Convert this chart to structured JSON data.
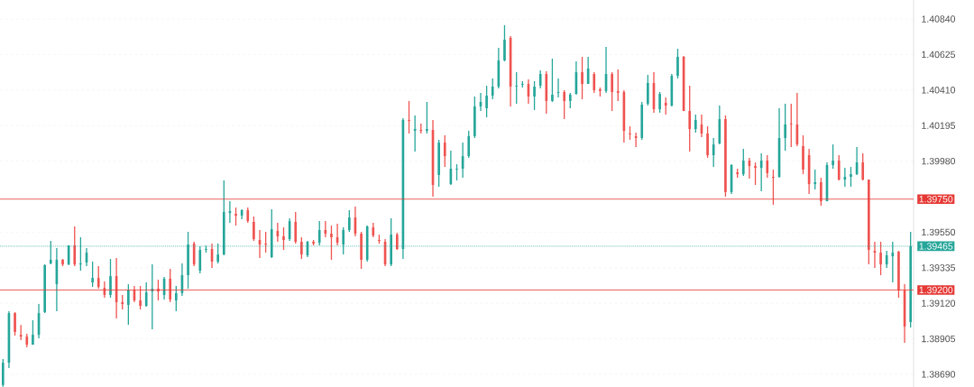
{
  "chart_data": {
    "type": "candlestick",
    "categories": [
      null,
      null,
      null,
      null,
      null,
      null,
      null,
      null,
      null,
      null,
      null,
      null,
      null,
      null,
      null,
      null,
      null,
      null,
      null,
      null,
      null,
      null,
      null,
      null,
      null,
      null,
      null,
      null,
      null,
      null,
      null,
      null,
      null,
      null,
      null,
      null,
      null,
      null,
      null,
      null,
      null,
      null,
      null,
      null,
      null,
      null,
      null,
      null,
      null,
      null,
      null,
      null,
      null,
      null,
      null,
      null,
      null,
      null,
      null,
      null,
      null,
      null,
      null,
      null,
      null,
      null,
      null,
      null,
      null,
      null,
      null,
      null,
      null,
      null,
      null,
      null,
      null,
      null,
      null,
      null,
      null,
      null,
      null,
      null,
      null,
      null,
      null,
      null,
      null,
      null,
      null,
      null,
      null,
      null,
      null,
      null,
      null,
      null,
      null,
      null,
      null,
      null,
      null,
      null,
      null,
      null,
      null,
      null,
      null,
      null,
      null,
      null,
      null,
      null,
      null,
      null,
      null,
      null,
      null,
      null,
      null,
      null,
      null,
      null,
      null,
      null,
      null,
      null,
      null,
      null,
      null,
      null,
      null,
      null,
      null,
      null,
      null,
      null,
      null,
      null,
      null,
      null,
      null,
      null,
      null,
      null,
      null,
      null,
      null,
      null,
      null,
      null,
      null
    ],
    "ohlc": [
      [
        1.38625,
        1.38782,
        1.38615,
        1.3876
      ],
      [
        1.3876,
        1.39071,
        1.38727,
        1.3906
      ],
      [
        1.3906,
        1.39066,
        1.38924,
        1.38946
      ],
      [
        1.38929,
        1.38989,
        1.38897,
        1.38918
      ],
      [
        1.38918,
        1.38935,
        1.38853,
        1.38869
      ],
      [
        1.38869,
        1.39017,
        1.38869,
        1.38929
      ],
      [
        1.38929,
        1.39115,
        1.38908,
        1.3906
      ],
      [
        1.39066,
        1.39355,
        1.3906,
        1.3935
      ],
      [
        1.39361,
        1.39497,
        1.39355,
        1.39383
      ],
      [
        1.39235,
        1.39454,
        1.39071,
        1.39383
      ],
      [
        1.39383,
        1.39388,
        1.39344,
        1.39355
      ],
      [
        1.39355,
        1.3947,
        1.3935,
        1.3947
      ],
      [
        1.3947,
        1.39585,
        1.39344,
        1.39355
      ],
      [
        1.39355,
        1.39519,
        1.39317,
        1.39361
      ],
      [
        1.39366,
        1.39454,
        1.39344,
        1.39426
      ],
      [
        1.39246,
        1.39372,
        1.39219,
        1.39273
      ],
      [
        1.39273,
        1.39344,
        1.39208,
        1.39219
      ],
      [
        1.39213,
        1.39252,
        1.39153,
        1.3917
      ],
      [
        1.3917,
        1.39388,
        1.39153,
        1.39284
      ],
      [
        1.39284,
        1.39393,
        1.39028,
        1.39126
      ],
      [
        1.39126,
        1.3917,
        1.39082,
        1.39115
      ],
      [
        1.3911,
        1.39235,
        1.38989,
        1.39202
      ],
      [
        1.39202,
        1.39224,
        1.39126,
        1.39137
      ],
      [
        1.39137,
        1.39224,
        1.39082,
        1.39104
      ],
      [
        1.39104,
        1.39246,
        1.39099,
        1.39186
      ],
      [
        1.39191,
        1.39355,
        1.38962,
        1.39208
      ],
      [
        1.39208,
        1.39262,
        1.39137,
        1.39191
      ],
      [
        1.3917,
        1.39279,
        1.39142,
        1.39268
      ],
      [
        1.39268,
        1.39328,
        1.39126,
        1.39142
      ],
      [
        1.39137,
        1.39224,
        1.39071,
        1.39181
      ],
      [
        1.39181,
        1.39361,
        1.39164,
        1.3929
      ],
      [
        1.3929,
        1.39552,
        1.39208,
        1.39475
      ],
      [
        1.39481,
        1.39492,
        1.39344,
        1.39355
      ],
      [
        1.39317,
        1.39464,
        1.39301,
        1.39443
      ],
      [
        1.39443,
        1.3947,
        1.39426,
        1.39448
      ],
      [
        1.39448,
        1.39481,
        1.39333,
        1.39372
      ],
      [
        1.39372,
        1.39481,
        1.39361,
        1.39415
      ],
      [
        1.39415,
        1.39863,
        1.3941,
        1.39672
      ],
      [
        1.39666,
        1.39737,
        1.39606,
        1.39677
      ],
      [
        1.39661,
        1.39699,
        1.3959,
        1.3965
      ],
      [
        1.3965,
        1.39688,
        1.39628,
        1.39683
      ],
      [
        1.39683,
        1.39699,
        1.39606,
        1.39617
      ],
      [
        1.39612,
        1.39645,
        1.39497,
        1.39508
      ],
      [
        1.39503,
        1.39563,
        1.39393,
        1.39475
      ],
      [
        1.39481,
        1.39552,
        1.39426,
        1.39475
      ],
      [
        1.39399,
        1.39688,
        1.39393,
        1.39568
      ],
      [
        1.39557,
        1.39606,
        1.39492,
        1.39525
      ],
      [
        1.39525,
        1.39579,
        1.39443,
        1.39503
      ],
      [
        1.39508,
        1.39634,
        1.39497,
        1.39617
      ],
      [
        1.39612,
        1.39672,
        1.39481,
        1.39492
      ],
      [
        1.39492,
        1.39519,
        1.39388,
        1.39415
      ],
      [
        1.3941,
        1.39497,
        1.39399,
        1.39492
      ],
      [
        1.39492,
        1.39503,
        1.3947,
        1.39481
      ],
      [
        1.39486,
        1.39617,
        1.3947,
        1.39563
      ],
      [
        1.39563,
        1.39617,
        1.39519,
        1.39541
      ],
      [
        1.39541,
        1.3959,
        1.39383,
        1.39519
      ],
      [
        1.39519,
        1.39601,
        1.3947,
        1.39486
      ],
      [
        1.39475,
        1.39579,
        1.39415,
        1.39563
      ],
      [
        1.39563,
        1.39683,
        1.39552,
        1.39639
      ],
      [
        1.39639,
        1.39705,
        1.39525,
        1.39541
      ],
      [
        1.39541,
        1.39552,
        1.39328,
        1.39383
      ],
      [
        1.39383,
        1.3959,
        1.39372,
        1.39585
      ],
      [
        1.39579,
        1.39606,
        1.39519,
        1.3953
      ],
      [
        1.39503,
        1.39535,
        1.39481,
        1.39497
      ],
      [
        1.39492,
        1.39508,
        1.39344,
        1.39355
      ],
      [
        1.39355,
        1.39634,
        1.39344,
        1.39535
      ],
      [
        1.39535,
        1.39546,
        1.39443,
        1.39448
      ],
      [
        1.39448,
        1.4024,
        1.39388,
        1.40229
      ],
      [
        1.40229,
        1.40344,
        1.40147,
        1.40223
      ],
      [
        1.40163,
        1.40256,
        1.40038,
        1.40174
      ],
      [
        1.40169,
        1.40207,
        1.40147,
        1.40163
      ],
      [
        1.40163,
        1.40338,
        1.40147,
        1.40174
      ],
      [
        1.40169,
        1.40229,
        1.39765,
        1.39836
      ],
      [
        1.39896,
        1.40109,
        1.39825,
        1.40092
      ],
      [
        1.40092,
        1.40136,
        1.39945,
        1.4001
      ],
      [
        1.39841,
        1.40043,
        1.39836,
        1.39934
      ],
      [
        1.39929,
        1.39961,
        1.39863,
        1.39934
      ],
      [
        1.39934,
        1.40092,
        1.39879,
        1.4001
      ],
      [
        1.4001,
        1.40163,
        1.4,
        1.40131
      ],
      [
        1.40131,
        1.40371,
        1.4012,
        1.40311
      ],
      [
        1.40311,
        1.40393,
        1.40283,
        1.40338
      ],
      [
        1.403,
        1.40436,
        1.40245,
        1.40376
      ],
      [
        1.40376,
        1.4048,
        1.40354,
        1.40431
      ],
      [
        1.40431,
        1.40666,
        1.4042,
        1.40589
      ],
      [
        1.40589,
        1.40802,
        1.40584,
        1.40715
      ],
      [
        1.40726,
        1.40737,
        1.40311,
        1.40431
      ],
      [
        1.40431,
        1.40518,
        1.40327,
        1.40436
      ],
      [
        1.40442,
        1.40464,
        1.40425,
        1.40447
      ],
      [
        1.40447,
        1.40475,
        1.40327,
        1.40371
      ],
      [
        1.40371,
        1.40464,
        1.40289,
        1.40431
      ],
      [
        1.40436,
        1.40529,
        1.4042,
        1.40507
      ],
      [
        1.40507,
        1.40524,
        1.40267,
        1.40344
      ],
      [
        1.40344,
        1.406,
        1.40338,
        1.40382
      ],
      [
        1.40393,
        1.4048,
        1.40365,
        1.40398
      ],
      [
        1.40398,
        1.40409,
        1.40234,
        1.40344
      ],
      [
        1.40344,
        1.40393,
        1.403,
        1.40382
      ],
      [
        1.40387,
        1.40584,
        1.40382,
        1.40518
      ],
      [
        1.40518,
        1.40611,
        1.40354,
        1.40447
      ],
      [
        1.40447,
        1.40611,
        1.40447,
        1.4054
      ],
      [
        1.40507,
        1.40518,
        1.40393,
        1.40409
      ],
      [
        1.40414,
        1.40425,
        1.40371,
        1.40404
      ],
      [
        1.40404,
        1.40671,
        1.40393,
        1.40507
      ],
      [
        1.40507,
        1.40518,
        1.40283,
        1.40398
      ],
      [
        1.40404,
        1.40535,
        1.40344,
        1.40393
      ],
      [
        1.40398,
        1.40409,
        1.40092,
        1.40163
      ],
      [
        1.40147,
        1.40191,
        1.40109,
        1.40142
      ],
      [
        1.40131,
        1.40152,
        1.40065,
        1.4012
      ],
      [
        1.4012,
        1.40338,
        1.40109,
        1.40322
      ],
      [
        1.40327,
        1.40502,
        1.40316,
        1.40453
      ],
      [
        1.40453,
        1.40518,
        1.40273,
        1.40294
      ],
      [
        1.40294,
        1.40398,
        1.40273,
        1.40387
      ],
      [
        1.40333,
        1.40365,
        1.40262,
        1.40316
      ],
      [
        1.40316,
        1.40507,
        1.40311,
        1.40496
      ],
      [
        1.40496,
        1.4066,
        1.4048,
        1.40611
      ],
      [
        1.40611,
        1.40617,
        1.40283,
        1.40283
      ],
      [
        1.40283,
        1.40436,
        1.40038,
        1.40174
      ],
      [
        1.40174,
        1.40262,
        1.40152,
        1.40229
      ],
      [
        1.40202,
        1.40262,
        1.40125,
        1.40147
      ],
      [
        1.40147,
        1.40191,
        1.4,
        1.40016
      ],
      [
        1.40016,
        1.4012,
        1.39945,
        1.40081
      ],
      [
        1.40087,
        1.40316,
        1.40081,
        1.40234
      ],
      [
        1.40234,
        1.40256,
        1.39765,
        1.39792
      ],
      [
        1.39792,
        1.39961,
        1.39781,
        1.39956
      ],
      [
        1.39912,
        1.39934,
        1.39879,
        1.39901
      ],
      [
        1.39901,
        1.40054,
        1.3989,
        1.39983
      ],
      [
        1.39983,
        1.4,
        1.39874,
        1.3995
      ],
      [
        1.3995,
        1.39972,
        1.39836,
        1.39939
      ],
      [
        1.39939,
        1.40027,
        1.39798,
        1.39983
      ],
      [
        1.39983,
        1.40016,
        1.39879,
        1.39907
      ],
      [
        1.39885,
        1.39929,
        1.39716,
        1.39879
      ],
      [
        1.39885,
        1.403,
        1.39879,
        1.4012
      ],
      [
        1.4012,
        1.40327,
        1.40043,
        1.40202
      ],
      [
        1.40207,
        1.40327,
        1.40065,
        1.40202
      ],
      [
        1.40202,
        1.40393,
        1.40071,
        1.40081
      ],
      [
        1.40071,
        1.40136,
        1.39901,
        1.39929
      ],
      [
        1.40016,
        1.40054,
        1.39781,
        1.39841
      ],
      [
        1.39841,
        1.39929,
        1.39808,
        1.39852
      ],
      [
        1.39852,
        1.39879,
        1.3971,
        1.39737
      ],
      [
        1.39737,
        1.39972,
        1.39737,
        1.39956
      ],
      [
        1.39956,
        1.40081,
        1.39934,
        1.39983
      ],
      [
        1.39983,
        1.40016,
        1.39863,
        1.39868
      ],
      [
        1.39868,
        1.39939,
        1.39825,
        1.39885
      ],
      [
        1.39885,
        1.39945,
        1.39825,
        1.39901
      ],
      [
        1.39901,
        1.40065,
        1.39896,
        1.39972
      ],
      [
        1.39972,
        1.40027,
        1.39863,
        1.39868
      ],
      [
        1.39868,
        1.39868,
        1.39355,
        1.39443
      ],
      [
        1.39437,
        1.39492,
        1.39333,
        1.39426
      ],
      [
        1.39426,
        1.39492,
        1.3929,
        1.39355
      ],
      [
        1.39355,
        1.39437,
        1.39333,
        1.3941
      ],
      [
        1.39404,
        1.39492,
        1.39246,
        1.39426
      ],
      [
        1.39432,
        1.39437,
        1.39153,
        1.39197
      ],
      [
        1.39197,
        1.39235,
        1.3888,
        1.38979
      ],
      [
        1.39006,
        1.39552,
        1.38973,
        1.39465
      ]
    ],
    "ylim": [
      1.38613,
      1.40955
    ],
    "yticks": [
      {
        "value": 1.4084,
        "label": "1.40840"
      },
      {
        "value": 1.40625,
        "label": "1.40625"
      },
      {
        "value": 1.4041,
        "label": "1.40410"
      },
      {
        "value": 1.40195,
        "label": "1.40195"
      },
      {
        "value": 1.3998,
        "label": "1.39980"
      },
      {
        "value": 1.3955,
        "label": "1.39550"
      },
      {
        "value": 1.39335,
        "label": "1.39335"
      },
      {
        "value": 1.3912,
        "label": "1.39120"
      },
      {
        "value": 1.38905,
        "label": "1.38905"
      },
      {
        "value": 1.3869,
        "label": "1.38690"
      }
    ],
    "ref_lines": [
      {
        "axis": "y",
        "value": 1.3975,
        "label": "1.39750",
        "color": "#e53935"
      },
      {
        "axis": "y",
        "value": 1.39465,
        "label": "1.39465",
        "color": "#26a69a",
        "line_style": "dotted"
      },
      {
        "axis": "y",
        "value": 1.392,
        "label": "1.39200",
        "color": "#e53935"
      }
    ],
    "grid": "y",
    "tick_labels": "y"
  }
}
